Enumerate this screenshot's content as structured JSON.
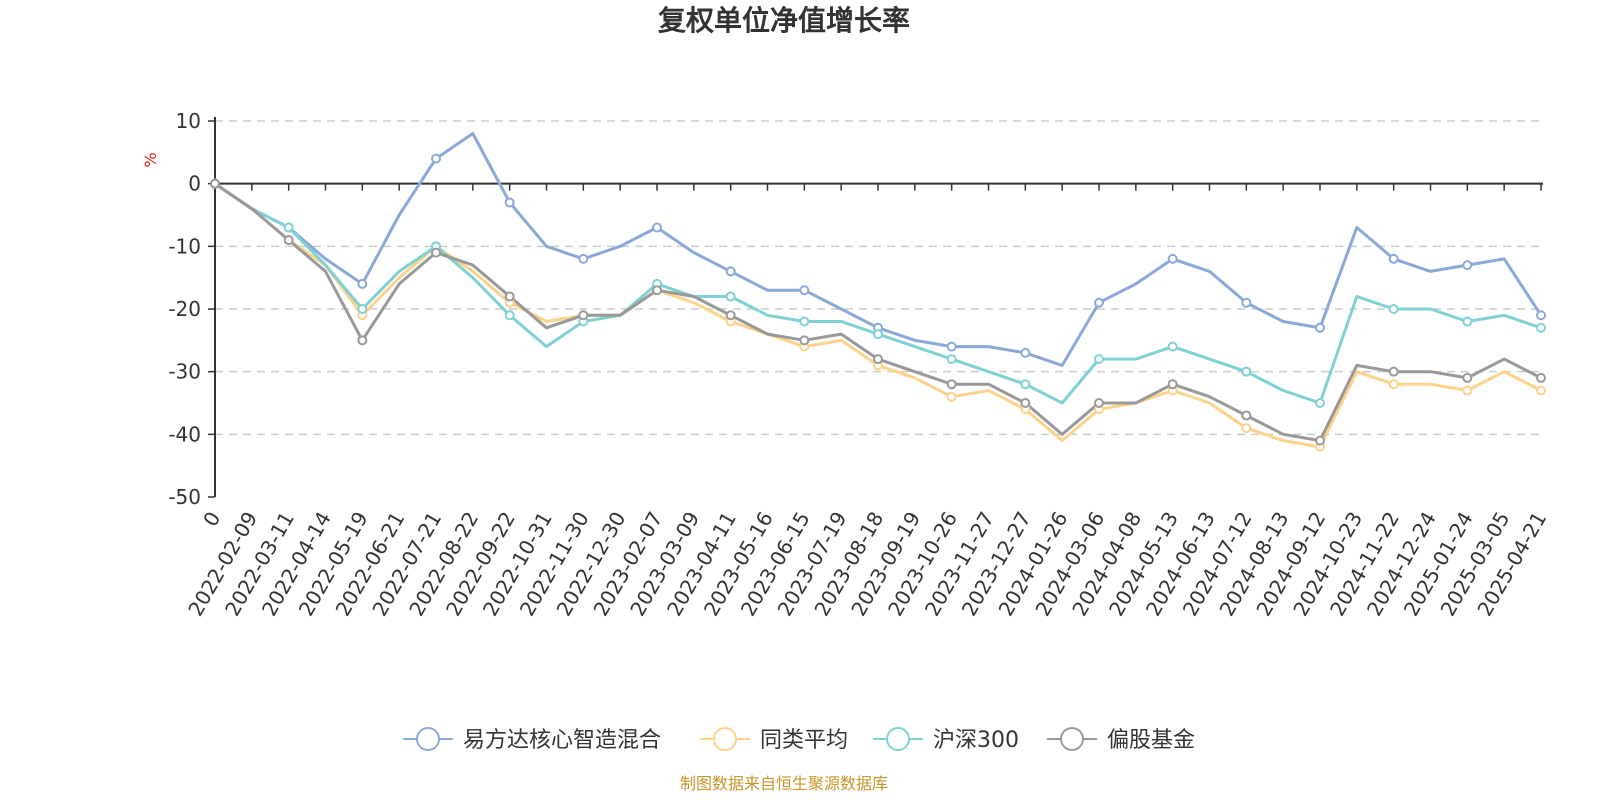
{
  "chart_data": {
    "type": "line",
    "title": "复权单位净值增长率",
    "ylabel": "%",
    "ylim": [
      -50,
      10
    ],
    "yticks": [
      10,
      0,
      -10,
      -20,
      -30,
      -40,
      -50
    ],
    "grid": true,
    "legend_position": "bottom",
    "source": "制图数据来自恒生聚源数据库",
    "x": [
      "0",
      "2022-02-09",
      "2022-03-11",
      "2022-04-14",
      "2022-05-19",
      "2022-06-21",
      "2022-07-21",
      "2022-08-22",
      "2022-09-22",
      "2022-10-31",
      "2022-11-30",
      "2022-12-30",
      "2023-02-07",
      "2023-03-09",
      "2023-04-11",
      "2023-05-16",
      "2023-06-15",
      "2023-07-19",
      "2023-08-18",
      "2023-09-19",
      "2023-10-26",
      "2023-11-27",
      "2023-12-27",
      "2024-01-26",
      "2024-03-06",
      "2024-04-08",
      "2024-05-13",
      "2024-06-13",
      "2024-07-12",
      "2024-08-13",
      "2024-09-12",
      "2024-10-23",
      "2024-11-22",
      "2024-12-24",
      "2025-01-24",
      "2025-03-05",
      "2025-04-21"
    ],
    "series": [
      {
        "name": "易方达核心智造混合",
        "color": "#8aa9d9",
        "values": [
          0,
          -4,
          -7,
          -12,
          -16,
          -5,
          4,
          8,
          -3,
          -10,
          -12,
          -10,
          -7,
          -11,
          -14,
          -17,
          -17,
          -20,
          -23,
          -25,
          -26,
          -26,
          -27,
          -29,
          -19,
          -16,
          -12,
          -14,
          -19,
          -22,
          -23,
          -7,
          -12,
          -14,
          -13,
          -12,
          -21
        ]
      },
      {
        "name": "同类平均",
        "color": "#fdd28a",
        "values": [
          0,
          -4,
          -9,
          -13,
          -21,
          -15,
          -10,
          -14,
          -19,
          -22,
          -21,
          -21,
          -17,
          -19,
          -22,
          -24,
          -26,
          -25,
          -29,
          -31,
          -34,
          -33,
          -36,
          -41,
          -36,
          -35,
          -33,
          -35,
          -39,
          -41,
          -42,
          -30,
          -32,
          -32,
          -33,
          -30,
          -33
        ]
      },
      {
        "name": "沪深300",
        "color": "#7fd1d4",
        "values": [
          0,
          -4,
          -7,
          -13,
          -20,
          -14,
          -10,
          -15,
          -21,
          -26,
          -22,
          -21,
          -16,
          -18,
          -18,
          -21,
          -22,
          -22,
          -24,
          -26,
          -28,
          -30,
          -32,
          -35,
          -28,
          -28,
          -26,
          -28,
          -30,
          -33,
          -35,
          -18,
          -20,
          -20,
          -22,
          -21,
          -23
        ]
      },
      {
        "name": "偏股基金",
        "color": "#999999",
        "values": [
          0,
          -4,
          -9,
          -14,
          -25,
          -16,
          -11,
          -13,
          -18,
          -23,
          -21,
          -21,
          -17,
          -18,
          -21,
          -24,
          -25,
          -24,
          -28,
          -30,
          -32,
          -32,
          -35,
          -40,
          -35,
          -35,
          -32,
          -34,
          -37,
          -40,
          -41,
          -29,
          -30,
          -30,
          -31,
          -28,
          -31
        ]
      }
    ]
  }
}
